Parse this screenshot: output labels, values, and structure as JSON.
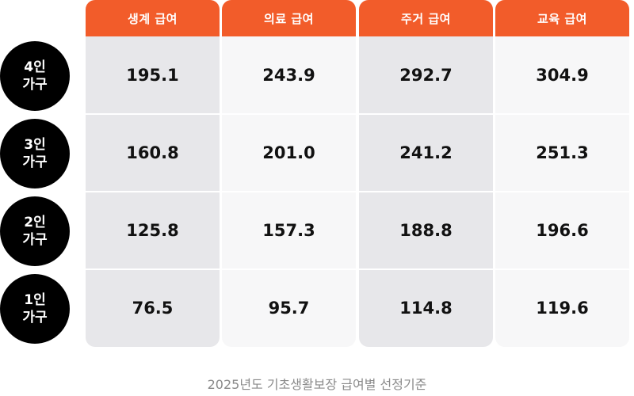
{
  "columns": [
    {
      "label": "생계 급여",
      "values": [
        "195.1",
        "160.8",
        "125.8",
        "76.5"
      ]
    },
    {
      "label": "의료 급여",
      "values": [
        "243.9",
        "201.0",
        "157.3",
        "95.7"
      ]
    },
    {
      "label": "주거 급여",
      "values": [
        "292.7",
        "241.2",
        "188.8",
        "114.8"
      ]
    },
    {
      "label": "교육 급여",
      "values": [
        "304.9",
        "251.3",
        "196.6",
        "119.6"
      ]
    }
  ],
  "rows": [
    {
      "line1": "4인",
      "line2": "가구"
    },
    {
      "line1": "3인",
      "line2": "가구"
    },
    {
      "line1": "2인",
      "line2": "가구"
    },
    {
      "line1": "1인",
      "line2": "가구"
    }
  ],
  "caption": "2025년도 기초생활보장 급여별 선정기준",
  "colors": {
    "header": "#f25c2a",
    "shaded_column": "#e7e7ea",
    "light_column": "#f7f7f8",
    "row_badge": "#000000",
    "caption": "#8a8a8a"
  }
}
